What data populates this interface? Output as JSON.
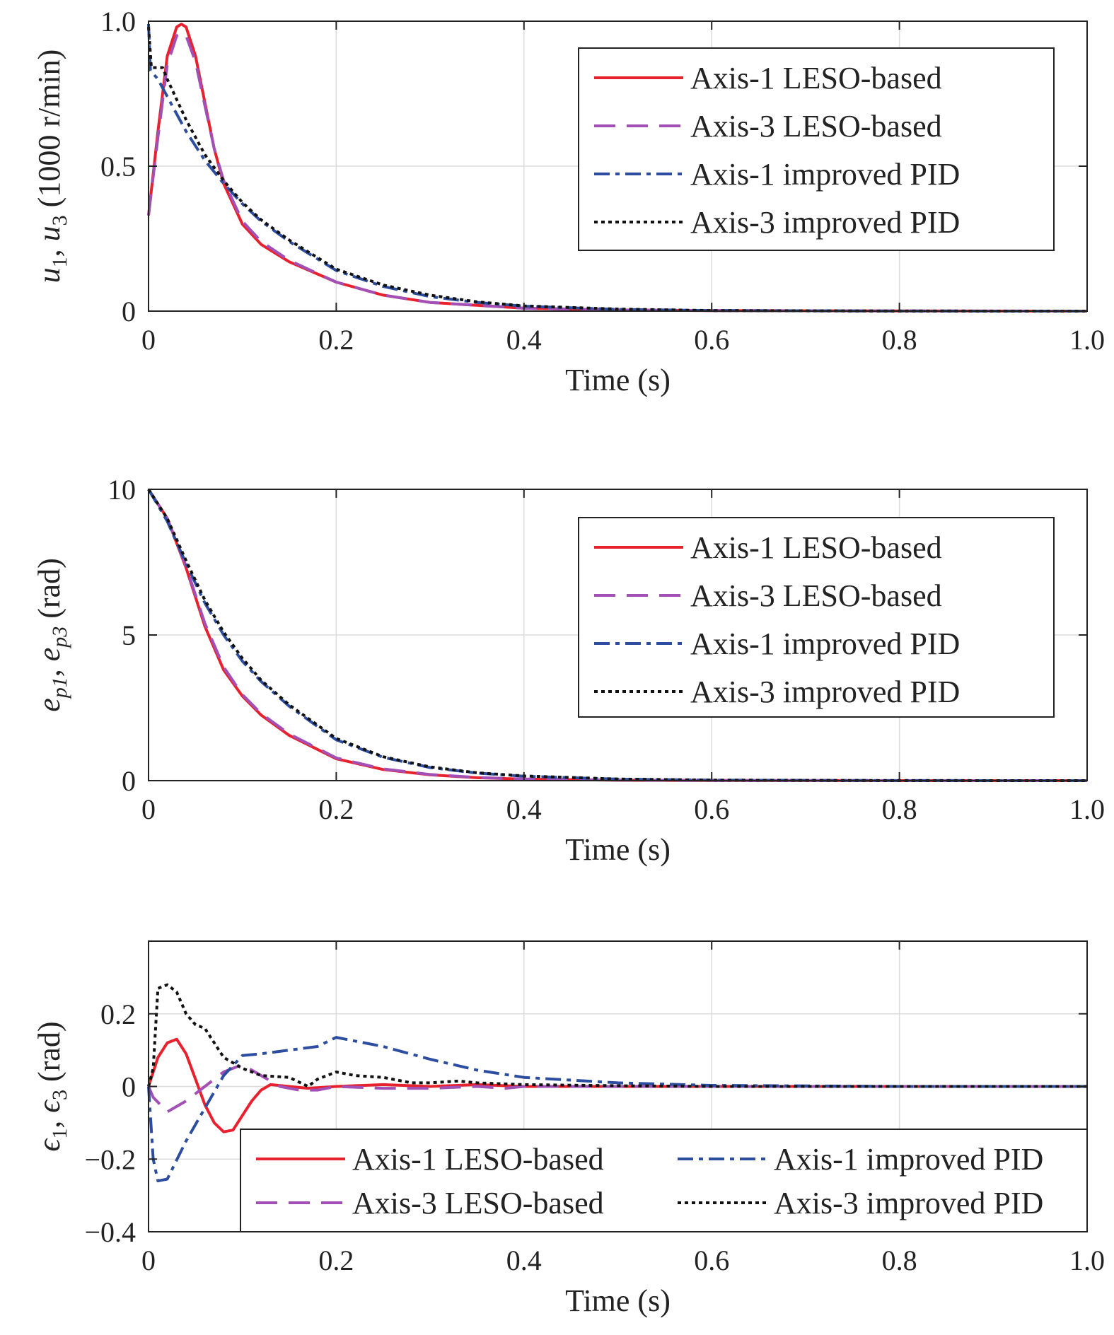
{
  "chart_data": [
    {
      "type": "line",
      "xlabel": "Time (s)",
      "ylabel": {
        "pre": "u",
        "sub1": "1",
        "mid": ", u",
        "sub2": "3",
        "post": " (1000 r/min)"
      },
      "xlim": [
        0,
        1.0
      ],
      "ylim": [
        0,
        1.0
      ],
      "xticks": [
        "0",
        "0.2",
        "0.4",
        "0.6",
        "0.8",
        "1.0"
      ],
      "yticks": [
        {
          "v": 0,
          "label": "0"
        },
        {
          "v": 0.5,
          "label": "0.5"
        },
        {
          "v": 1.0,
          "label": "1.0"
        }
      ],
      "grid": true,
      "legend": "top-right",
      "series": [
        {
          "name": "Axis-1 LESO-based",
          "color": "#e8212e",
          "dash": "solid",
          "x": [
            0,
            0.01,
            0.02,
            0.03,
            0.035,
            0.04,
            0.05,
            0.06,
            0.07,
            0.08,
            0.1,
            0.12,
            0.15,
            0.2,
            0.25,
            0.3,
            0.4,
            0.5,
            0.6,
            0.8,
            1.0
          ],
          "y": [
            0.33,
            0.62,
            0.88,
            0.98,
            0.99,
            0.98,
            0.88,
            0.72,
            0.56,
            0.44,
            0.3,
            0.23,
            0.17,
            0.1,
            0.055,
            0.03,
            0.01,
            0.004,
            0.002,
            0.0005,
            0.0
          ]
        },
        {
          "name": "Axis-3 LESO-based",
          "color": "#a24fb6",
          "dash": "dashed",
          "x": [
            0,
            0.01,
            0.02,
            0.03,
            0.035,
            0.04,
            0.05,
            0.06,
            0.07,
            0.08,
            0.1,
            0.12,
            0.15,
            0.2,
            0.25,
            0.3,
            0.4,
            0.5,
            0.6,
            0.8,
            1.0
          ],
          "y": [
            0.33,
            0.6,
            0.85,
            0.95,
            0.96,
            0.95,
            0.86,
            0.71,
            0.56,
            0.45,
            0.31,
            0.24,
            0.175,
            0.1,
            0.055,
            0.03,
            0.01,
            0.004,
            0.002,
            0.0005,
            0.0
          ]
        },
        {
          "name": "Axis-1 improved PID",
          "color": "#2d4ea0",
          "dash": "dashdot",
          "x": [
            0,
            0.002,
            0.01,
            0.02,
            0.04,
            0.06,
            0.08,
            0.1,
            0.12,
            0.15,
            0.2,
            0.25,
            0.3,
            0.35,
            0.4,
            0.5,
            0.6,
            0.8,
            1.0
          ],
          "y": [
            0.99,
            0.83,
            0.8,
            0.74,
            0.62,
            0.52,
            0.44,
            0.37,
            0.31,
            0.24,
            0.14,
            0.085,
            0.05,
            0.03,
            0.017,
            0.006,
            0.002,
            0.0003,
            0.0
          ]
        },
        {
          "name": "Axis-3 improved PID",
          "color": "#111111",
          "dash": "dotted",
          "x": [
            0,
            0.003,
            0.015,
            0.02,
            0.04,
            0.06,
            0.08,
            0.1,
            0.12,
            0.15,
            0.2,
            0.25,
            0.3,
            0.35,
            0.4,
            0.5,
            0.6,
            0.8,
            1.0
          ],
          "y": [
            0.98,
            0.84,
            0.84,
            0.8,
            0.66,
            0.54,
            0.45,
            0.375,
            0.315,
            0.245,
            0.145,
            0.09,
            0.055,
            0.032,
            0.018,
            0.007,
            0.002,
            0.0003,
            0.0
          ]
        }
      ]
    },
    {
      "type": "line",
      "xlabel": "Time (s)",
      "ylabel": {
        "pre": "e",
        "sub1": "p1",
        "mid": ", e",
        "sub2": "p3",
        "post": " (rad)"
      },
      "xlim": [
        0,
        1.0
      ],
      "ylim": [
        0,
        10
      ],
      "xticks": [
        "0",
        "0.2",
        "0.4",
        "0.6",
        "0.8",
        "1.0"
      ],
      "yticks": [
        {
          "v": 0,
          "label": "0"
        },
        {
          "v": 5,
          "label": "5"
        },
        {
          "v": 10,
          "label": "10"
        }
      ],
      "grid": true,
      "legend": "top-right",
      "series": [
        {
          "name": "Axis-1 LESO-based",
          "color": "#e8212e",
          "dash": "solid",
          "x": [
            0,
            0.02,
            0.04,
            0.06,
            0.08,
            0.1,
            0.12,
            0.15,
            0.2,
            0.25,
            0.3,
            0.35,
            0.4,
            0.5,
            0.6,
            0.8,
            1.0
          ],
          "y": [
            10,
            9.0,
            7.3,
            5.3,
            3.8,
            2.9,
            2.25,
            1.55,
            0.75,
            0.38,
            0.2,
            0.1,
            0.05,
            0.015,
            0.005,
            0.001,
            0.0
          ]
        },
        {
          "name": "Axis-3 LESO-based",
          "color": "#a24fb6",
          "dash": "dashed",
          "x": [
            0,
            0.02,
            0.04,
            0.06,
            0.08,
            0.1,
            0.12,
            0.15,
            0.2,
            0.25,
            0.3,
            0.35,
            0.4,
            0.5,
            0.6,
            0.8,
            1.0
          ],
          "y": [
            10,
            9.0,
            7.35,
            5.4,
            3.9,
            2.95,
            2.3,
            1.6,
            0.78,
            0.4,
            0.21,
            0.11,
            0.055,
            0.016,
            0.005,
            0.001,
            0.0
          ]
        },
        {
          "name": "Axis-1 improved PID",
          "color": "#2d4ea0",
          "dash": "dashdot",
          "x": [
            0,
            0.02,
            0.04,
            0.06,
            0.08,
            0.1,
            0.12,
            0.15,
            0.2,
            0.25,
            0.3,
            0.35,
            0.4,
            0.5,
            0.6,
            0.8,
            1.0
          ],
          "y": [
            10,
            8.9,
            7.45,
            6.1,
            5.0,
            4.1,
            3.4,
            2.55,
            1.4,
            0.8,
            0.45,
            0.26,
            0.15,
            0.05,
            0.017,
            0.002,
            0.0
          ]
        },
        {
          "name": "Axis-3 improved PID",
          "color": "#111111",
          "dash": "dotted",
          "x": [
            0,
            0.02,
            0.04,
            0.06,
            0.08,
            0.1,
            0.12,
            0.15,
            0.2,
            0.25,
            0.3,
            0.35,
            0.4,
            0.5,
            0.6,
            0.8,
            1.0
          ],
          "y": [
            10,
            9.0,
            7.55,
            6.2,
            5.1,
            4.2,
            3.45,
            2.6,
            1.45,
            0.82,
            0.47,
            0.27,
            0.16,
            0.055,
            0.018,
            0.002,
            0.0
          ]
        }
      ]
    },
    {
      "type": "line",
      "xlabel": "Time (s)",
      "ylabel": {
        "pre": "ϵ",
        "sub1": "1",
        "mid": ", ϵ",
        "sub2": "3",
        "post": " (rad)"
      },
      "xlim": [
        0,
        1.0
      ],
      "ylim": [
        -0.4,
        0.4
      ],
      "xticks": [
        "0",
        "0.2",
        "0.4",
        "0.6",
        "0.8",
        "1.0"
      ],
      "yticks": [
        {
          "v": -0.4,
          "label": "−0.4"
        },
        {
          "v": -0.2,
          "label": "−0.2"
        },
        {
          "v": 0,
          "label": "0"
        },
        {
          "v": 0.2,
          "label": "0.2"
        }
      ],
      "grid": true,
      "legend": "bottom-right",
      "series": [
        {
          "name": "Axis-1 LESO-based",
          "color": "#e8212e",
          "dash": "solid",
          "x": [
            0,
            0.01,
            0.02,
            0.03,
            0.04,
            0.05,
            0.06,
            0.07,
            0.08,
            0.09,
            0.1,
            0.11,
            0.12,
            0.13,
            0.15,
            0.17,
            0.2,
            0.25,
            0.3,
            0.35,
            0.4,
            0.5,
            0.6,
            0.8,
            1.0
          ],
          "y": [
            0.0,
            0.08,
            0.12,
            0.13,
            0.09,
            0.02,
            -0.05,
            -0.1,
            -0.125,
            -0.12,
            -0.08,
            -0.04,
            -0.01,
            0.005,
            0.0,
            -0.005,
            0.0,
            0.005,
            0.0,
            0.005,
            0.0,
            0.0,
            0.0,
            0.0,
            0.0
          ]
        },
        {
          "name": "Axis-3 LESO-based",
          "color": "#a24fb6",
          "dash": "dashed",
          "x": [
            0,
            0.005,
            0.02,
            0.04,
            0.06,
            0.08,
            0.1,
            0.12,
            0.14,
            0.16,
            0.18,
            0.2,
            0.25,
            0.3,
            0.35,
            0.38,
            0.4,
            0.5,
            0.6,
            0.8,
            1.0
          ],
          "y": [
            0.0,
            -0.03,
            -0.07,
            -0.04,
            0.0,
            0.04,
            0.06,
            0.03,
            0.0,
            -0.01,
            -0.01,
            0.0,
            -0.005,
            -0.005,
            0.0,
            -0.005,
            0.0,
            0.0,
            0.0,
            0.0,
            0.0
          ]
        },
        {
          "name": "Axis-1 improved PID",
          "color": "#2d4ea0",
          "dash": "dashdot",
          "x": [
            0,
            0.005,
            0.01,
            0.02,
            0.04,
            0.06,
            0.08,
            0.1,
            0.12,
            0.15,
            0.18,
            0.2,
            0.22,
            0.25,
            0.3,
            0.35,
            0.4,
            0.5,
            0.6,
            0.8,
            1.0
          ],
          "y": [
            0.0,
            -0.2,
            -0.26,
            -0.255,
            -0.15,
            -0.06,
            0.03,
            0.085,
            0.09,
            0.1,
            0.11,
            0.135,
            0.125,
            0.11,
            0.075,
            0.045,
            0.025,
            0.01,
            0.003,
            0.0,
            0.0
          ]
        },
        {
          "name": "Axis-3 improved PID",
          "color": "#111111",
          "dash": "dotted",
          "x": [
            0,
            0.005,
            0.01,
            0.02,
            0.03,
            0.04,
            0.05,
            0.06,
            0.07,
            0.08,
            0.1,
            0.12,
            0.15,
            0.17,
            0.18,
            0.2,
            0.22,
            0.25,
            0.28,
            0.3,
            0.33,
            0.35,
            0.4,
            0.5,
            0.6,
            0.8,
            1.0
          ],
          "y": [
            0.0,
            0.05,
            0.27,
            0.28,
            0.26,
            0.2,
            0.17,
            0.16,
            0.12,
            0.08,
            0.05,
            0.03,
            0.025,
            0.0,
            0.02,
            0.04,
            0.03,
            0.025,
            0.01,
            0.01,
            0.015,
            0.01,
            0.005,
            0.002,
            0.0,
            0.0,
            0.0
          ]
        }
      ]
    }
  ]
}
